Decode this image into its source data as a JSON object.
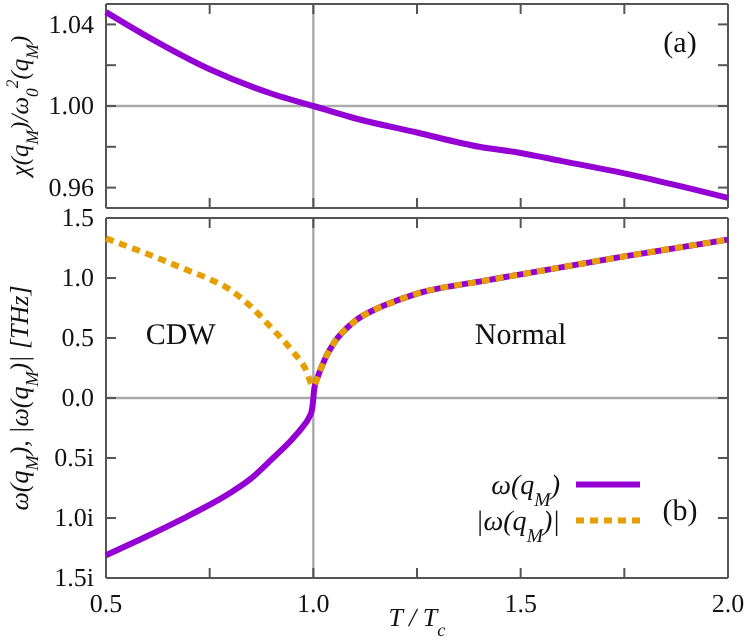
{
  "chart_data": [
    {
      "type": "line",
      "ylabel": "χ(q$_{M}$)/ω$_{0}$$^{2}$(q$_{M}$)",
      "annotations": [
        "(a)"
      ],
      "x": [
        0.5,
        0.6,
        0.75,
        0.9,
        1.0,
        1.1,
        1.25,
        1.4,
        1.5,
        1.6,
        1.75,
        1.9,
        2.0
      ],
      "series": [
        {
          "color": "#9400d3",
          "values": [
            1.046,
            1.034,
            1.018,
            1.006,
            1.0,
            0.994,
            0.987,
            0.98,
            0.977,
            0.973,
            0.967,
            0.96,
            0.955
          ]
        }
      ],
      "xlim": [
        0.5,
        2.0
      ],
      "ylim": [
        0.95,
        1.05
      ],
      "xticks": [
        0.5,
        0.75,
        1,
        1.25,
        1.5,
        1.75,
        2
      ],
      "yticks": [
        0.96,
        {
          "value": 0.98,
          "label": null
        },
        {
          "value": 1.0,
          "label": "1.00"
        },
        {
          "value": 1.02,
          "label": null
        },
        1.04
      ],
      "tick_labels": "y",
      "legend": false,
      "grid": false,
      "ref_lines": [
        {
          "axis": "x",
          "value": 1,
          "color": "#aaaaaa"
        },
        {
          "axis": "y",
          "value": 1,
          "color": "#aaaaaa"
        }
      ]
    },
    {
      "type": "line",
      "xlabel": "T / T$_{c}$",
      "ylabel": "ω(q$_{M}$), |ω(q$_{M}$)| [THz]",
      "annotations": [
        "CDW",
        "Normal",
        "(b)"
      ],
      "series": [
        {
          "name": "ω(q$_{M}$)",
          "color": "#9400d3",
          "line_style": "solid",
          "x": [
            0.5,
            0.6,
            0.7,
            0.8,
            0.85,
            0.9,
            0.95,
            0.97,
            0.99,
            0.995,
            0.998,
            1.0,
            1.002,
            1.005,
            1.01,
            1.02,
            1.03,
            1.05,
            1.1,
            1.15,
            1.2,
            1.25,
            1.4,
            1.5,
            1.75,
            2.0
          ],
          "values": [
            -1.31,
            -1.15,
            -0.98,
            -0.79,
            -0.67,
            -0.51,
            -0.34,
            -0.26,
            -0.16,
            -0.12,
            -0.07,
            0,
            0.07,
            0.12,
            0.17,
            0.26,
            0.34,
            0.46,
            0.64,
            0.74,
            0.81,
            0.87,
            0.97,
            1.03,
            1.18,
            1.32
          ]
        },
        {
          "name": "|ω(q$_{M}$)|",
          "color": "#e69f00",
          "line_style": "dashed",
          "x": [
            0.5,
            0.6,
            0.7,
            0.75,
            0.8,
            0.85,
            0.9,
            0.95,
            0.98,
            1.0,
            1.005,
            1.01,
            1.02,
            1.03,
            1.05,
            1.1,
            1.15,
            1.2,
            1.25,
            1.4,
            1.5,
            1.75,
            2.0
          ],
          "values": [
            1.33,
            1.2,
            1.06,
            0.99,
            0.9,
            0.76,
            0.58,
            0.39,
            0.25,
            0.1,
            0.12,
            0.17,
            0.26,
            0.34,
            0.46,
            0.64,
            0.74,
            0.81,
            0.87,
            0.97,
            1.03,
            1.18,
            1.32
          ]
        }
      ],
      "xlim": [
        0.5,
        2.0
      ],
      "ylim": [
        -1.5,
        1.5
      ],
      "xticks": [
        {
          "value": 0.5,
          "label": "0.5"
        },
        {
          "value": 0.75,
          "label": null
        },
        {
          "value": 1,
          "label": "1.0"
        },
        {
          "value": 1.25,
          "label": null
        },
        {
          "value": 1.5,
          "label": "1.5"
        },
        {
          "value": 1.75,
          "label": null
        },
        {
          "value": 2,
          "label": "2.0"
        }
      ],
      "yticks": [
        {
          "value": -1.5,
          "label": "1.5i"
        },
        {
          "value": -1.0,
          "label": "1.0i"
        },
        {
          "value": -0.5,
          "label": "0.5i"
        },
        {
          "value": 0,
          "label": "0.0"
        },
        0.5,
        {
          "value": 1,
          "label": "1.0"
        },
        1.5
      ],
      "legend": "bottom right",
      "grid": false,
      "ref_lines": [
        {
          "axis": "x",
          "value": 1,
          "color": "#aaaaaa"
        },
        {
          "axis": "y",
          "value": 0,
          "color": "#aaaaaa"
        }
      ]
    }
  ]
}
